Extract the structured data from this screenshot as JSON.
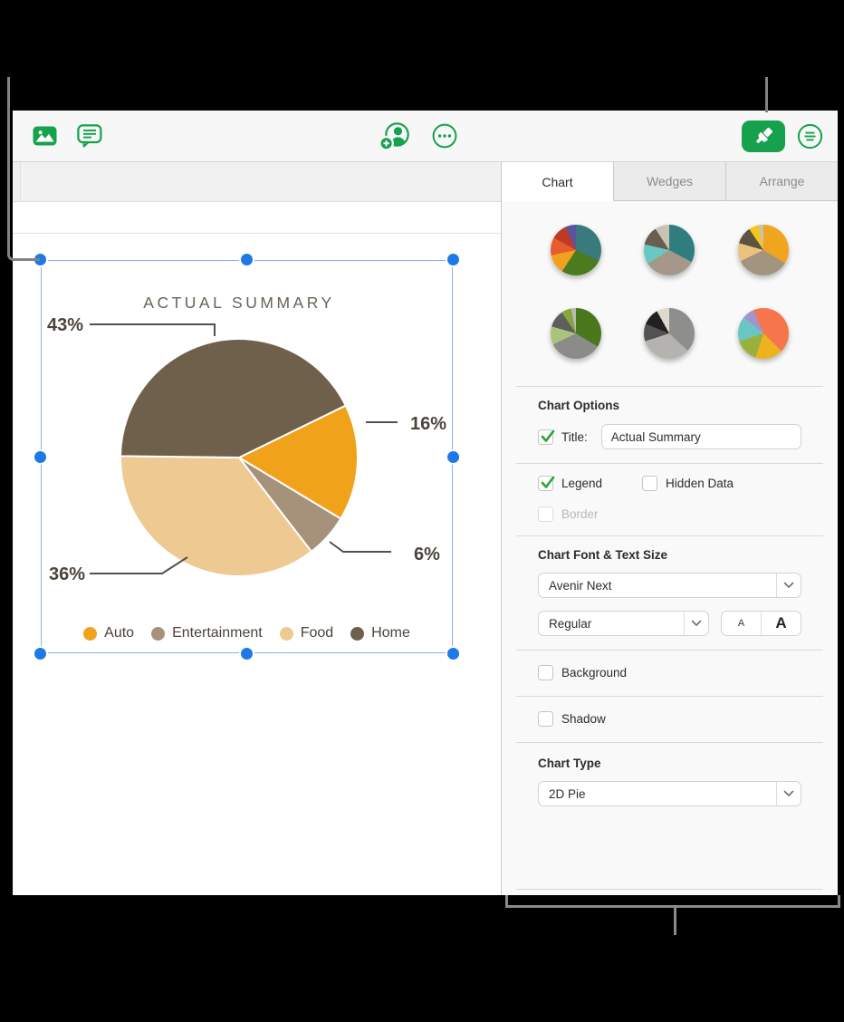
{
  "colors": {
    "accent_green": "#16a24c",
    "selection_blue": "#1e79e8"
  },
  "toolbar": {
    "icons": [
      "media-icon",
      "comment-icon",
      "collaborate-add-person-icon",
      "more-options-icon",
      "format-paintbrush-icon",
      "view-options-icon"
    ]
  },
  "chart_data": {
    "type": "pie",
    "title": "ACTUAL SUMMARY",
    "categories": [
      "Auto",
      "Entertainment",
      "Food",
      "Home"
    ],
    "values": [
      16,
      6,
      36,
      43
    ],
    "labels": [
      "16%",
      "6%",
      "36%",
      "43%"
    ],
    "colors": [
      "#f0a21b",
      "#a6917a",
      "#eec991",
      "#6f604c"
    ],
    "start_angle_deg": 64,
    "legend_position": "bottom",
    "units": "percent"
  },
  "sidebar": {
    "tabs": [
      {
        "label": "Chart",
        "active": true
      },
      {
        "label": "Wedges",
        "active": false
      },
      {
        "label": "Arrange",
        "active": false
      }
    ],
    "chart_styles": [
      {
        "stops": [
          [
            "#3a7a7c",
            115
          ],
          [
            "#4c7a1e",
            213
          ],
          [
            "#f2a11e",
            258
          ],
          [
            "#e55d2d",
            299
          ],
          [
            "#bf3a22",
            336
          ],
          [
            "#5a54a0",
            360
          ]
        ]
      },
      {
        "stops": [
          [
            "#2f7d7f",
            118
          ],
          [
            "#a5988a",
            238
          ],
          [
            "#68c8c5",
            283
          ],
          [
            "#6b5d4f",
            327
          ],
          [
            "#cac3b5",
            360
          ]
        ]
      },
      {
        "stops": [
          [
            "#f0a51e",
            121
          ],
          [
            "#a2947f",
            244
          ],
          [
            "#e9c27c",
            286
          ],
          [
            "#5e5244",
            326
          ],
          [
            "#f4c51f",
            349
          ],
          [
            "#c6c1b9",
            360
          ]
        ]
      },
      {
        "stops": [
          [
            "#49771c",
            121
          ],
          [
            "#8b8b89",
            244
          ],
          [
            "#abc37c",
            286
          ],
          [
            "#5e5e5c",
            326
          ],
          [
            "#87a73e",
            349
          ],
          [
            "#b9b9b7",
            360
          ]
        ]
      },
      {
        "stops": [
          [
            "#8e8e8c",
            133
          ],
          [
            "#b5b3af",
            252
          ],
          [
            "#525250",
            292
          ],
          [
            "#212121",
            331
          ],
          [
            "#ded9cc",
            360
          ]
        ]
      },
      {
        "stops": [
          [
            "#f5764c",
            135
          ],
          [
            "#ecb31e",
            198
          ],
          [
            "#98b13c",
            252
          ],
          [
            "#69c6c4",
            309
          ],
          [
            "#a294cc",
            337
          ],
          [
            "#f5764c",
            360
          ]
        ]
      }
    ],
    "chart_options": {
      "heading": "Chart Options",
      "title_label": "Title:",
      "title_checked": true,
      "title_value": "Actual Summary"
    },
    "display": {
      "legend_label": "Legend",
      "legend_checked": true,
      "hidden_data_label": "Hidden Data",
      "hidden_data_checked": false,
      "border_label": "Border",
      "border_checked": false,
      "border_disabled": true
    },
    "font": {
      "heading": "Chart Font & Text Size",
      "family": "Avenir Next",
      "style": "Regular",
      "decrease_label": "A",
      "increase_label": "A"
    },
    "background": {
      "label": "Background",
      "checked": false
    },
    "shadow": {
      "label": "Shadow",
      "checked": false
    },
    "chart_type": {
      "heading": "Chart Type",
      "value": "2D Pie"
    }
  }
}
